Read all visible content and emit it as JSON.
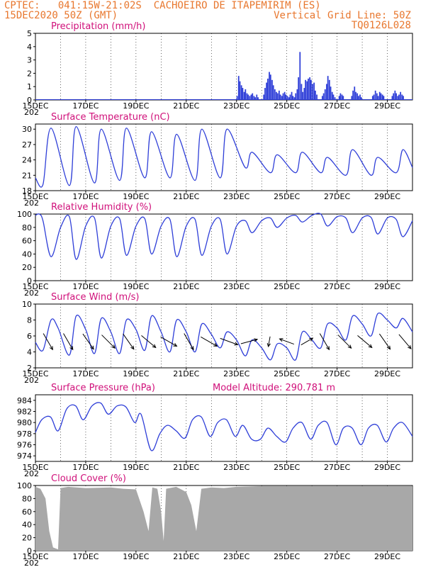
{
  "header": {
    "line1_left": "CPTEC:   041:15W-21:02S  CACHOEIRO DE ITAPEMIRIM (ES)",
    "line2_left": "15DEC2020 50Z (GMT)",
    "line2_right": "Vertical Grid Line: 50Z",
    "line3_right": "TQ0126L028"
  },
  "model_altitude_label": "Model Altitude: 290.781 m",
  "colors": {
    "header": "#e8772e",
    "title": "#d0107a",
    "line": "#2f3fd8",
    "cloud": "#a8a8a8",
    "arrow": "#000000"
  },
  "x_ticks": [
    "15DEC",
    "17DEC",
    "19DEC",
    "21DEC",
    "23DEC",
    "25DEC",
    "27DEC",
    "29DEC"
  ],
  "x_subtick": "202",
  "chart_data": [
    {
      "id": "precip",
      "type": "bar",
      "title": "Precipitation (mm/h)",
      "ylim": [
        0,
        5
      ],
      "yticks": [
        0,
        1,
        2,
        3,
        4,
        5
      ],
      "x_days_range": [
        0,
        15
      ],
      "values": [
        [
          8.0,
          0.3
        ],
        [
          8.06,
          1.8
        ],
        [
          8.11,
          1.4
        ],
        [
          8.17,
          1.1
        ],
        [
          8.22,
          0.9
        ],
        [
          8.28,
          0.6
        ],
        [
          8.33,
          0.8
        ],
        [
          8.39,
          0.5
        ],
        [
          8.44,
          0.4
        ],
        [
          8.5,
          0.3
        ],
        [
          8.56,
          0.4
        ],
        [
          8.61,
          0.5
        ],
        [
          8.67,
          0.3
        ],
        [
          8.72,
          0.2
        ],
        [
          8.78,
          0.4
        ],
        [
          8.83,
          0.2
        ],
        [
          9.06,
          0.4
        ],
        [
          9.11,
          0.9
        ],
        [
          9.17,
          1.3
        ],
        [
          9.22,
          1.6
        ],
        [
          9.28,
          2.1
        ],
        [
          9.33,
          1.9
        ],
        [
          9.39,
          1.5
        ],
        [
          9.44,
          1.1
        ],
        [
          9.5,
          0.8
        ],
        [
          9.56,
          0.6
        ],
        [
          9.61,
          0.5
        ],
        [
          9.67,
          0.7
        ],
        [
          9.72,
          0.4
        ],
        [
          9.78,
          0.3
        ],
        [
          9.83,
          0.5
        ],
        [
          9.89,
          0.6
        ],
        [
          9.94,
          0.4
        ],
        [
          10.0,
          0.3
        ],
        [
          10.06,
          0.2
        ],
        [
          10.11,
          0.4
        ],
        [
          10.17,
          0.6
        ],
        [
          10.22,
          0.3
        ],
        [
          10.28,
          0.2
        ],
        [
          10.33,
          0.5
        ],
        [
          10.39,
          0.8
        ],
        [
          10.44,
          1.7
        ],
        [
          10.5,
          3.6
        ],
        [
          10.56,
          1.2
        ],
        [
          10.61,
          0.6
        ],
        [
          10.67,
          0.9
        ],
        [
          10.72,
          1.5
        ],
        [
          10.78,
          1.4
        ],
        [
          10.83,
          1.6
        ],
        [
          10.89,
          1.7
        ],
        [
          10.94,
          1.5
        ],
        [
          11.0,
          1.2
        ],
        [
          11.06,
          1.3
        ],
        [
          11.11,
          0.7
        ],
        [
          11.17,
          0.4
        ],
        [
          11.39,
          0.3
        ],
        [
          11.44,
          0.5
        ],
        [
          11.5,
          0.8
        ],
        [
          11.56,
          1.2
        ],
        [
          11.61,
          1.8
        ],
        [
          11.67,
          1.5
        ],
        [
          11.72,
          1.0
        ],
        [
          11.78,
          0.6
        ],
        [
          11.83,
          0.4
        ],
        [
          11.89,
          0.2
        ],
        [
          12.06,
          0.3
        ],
        [
          12.11,
          0.5
        ],
        [
          12.17,
          0.4
        ],
        [
          12.22,
          0.3
        ],
        [
          12.56,
          0.3
        ],
        [
          12.61,
          0.7
        ],
        [
          12.67,
          1.0
        ],
        [
          12.72,
          0.6
        ],
        [
          12.78,
          0.5
        ],
        [
          12.83,
          0.3
        ],
        [
          12.89,
          0.4
        ],
        [
          12.94,
          0.2
        ],
        [
          13.39,
          0.3
        ],
        [
          13.44,
          0.4
        ],
        [
          13.5,
          0.7
        ],
        [
          13.56,
          0.5
        ],
        [
          13.61,
          0.3
        ],
        [
          13.67,
          0.6
        ],
        [
          13.72,
          0.5
        ],
        [
          13.78,
          0.4
        ],
        [
          13.83,
          0.3
        ],
        [
          14.17,
          0.3
        ],
        [
          14.22,
          0.5
        ],
        [
          14.28,
          0.7
        ],
        [
          14.33,
          0.5
        ],
        [
          14.39,
          0.3
        ],
        [
          14.44,
          0.4
        ],
        [
          14.5,
          0.6
        ],
        [
          14.56,
          0.4
        ],
        [
          14.61,
          0.3
        ]
      ]
    },
    {
      "id": "temp",
      "type": "line",
      "title": "Surface Temperature (nC)",
      "ylim": [
        18,
        31
      ],
      "yticks": [
        18,
        21,
        24,
        27,
        30
      ],
      "points": [
        [
          0.0,
          20.5
        ],
        [
          0.3,
          19.2
        ],
        [
          0.62,
          30.2
        ],
        [
          1.35,
          19.0
        ],
        [
          1.62,
          30.5
        ],
        [
          2.35,
          19.5
        ],
        [
          2.62,
          30.0
        ],
        [
          3.35,
          20.0
        ],
        [
          3.62,
          30.2
        ],
        [
          4.35,
          20.5
        ],
        [
          4.62,
          29.5
        ],
        [
          5.35,
          20.5
        ],
        [
          5.62,
          29.0
        ],
        [
          6.35,
          20.0
        ],
        [
          6.62,
          30.0
        ],
        [
          7.35,
          20.5
        ],
        [
          7.62,
          30.0
        ],
        [
          8.35,
          22.5
        ],
        [
          8.62,
          25.5
        ],
        [
          9.35,
          21.5
        ],
        [
          9.62,
          25.0
        ],
        [
          10.35,
          21.5
        ],
        [
          10.62,
          25.5
        ],
        [
          11.35,
          21.5
        ],
        [
          11.62,
          24.5
        ],
        [
          12.35,
          21.0
        ],
        [
          12.62,
          26.0
        ],
        [
          13.35,
          21.0
        ],
        [
          13.62,
          24.5
        ],
        [
          14.35,
          21.5
        ],
        [
          14.62,
          26.0
        ],
        [
          15.0,
          22.5
        ]
      ]
    },
    {
      "id": "rh",
      "type": "line",
      "title": "Relative Humidity (%)",
      "ylim": [
        0,
        100
      ],
      "yticks": [
        0,
        20,
        40,
        60,
        80,
        100
      ],
      "points": [
        [
          0.0,
          98
        ],
        [
          0.15,
          100
        ],
        [
          0.3,
          90
        ],
        [
          0.62,
          36
        ],
        [
          1.0,
          80
        ],
        [
          1.35,
          96
        ],
        [
          1.62,
          32
        ],
        [
          2.0,
          82
        ],
        [
          2.35,
          94
        ],
        [
          2.62,
          34
        ],
        [
          3.0,
          82
        ],
        [
          3.35,
          93
        ],
        [
          3.62,
          38
        ],
        [
          4.0,
          82
        ],
        [
          4.35,
          93
        ],
        [
          4.62,
          40
        ],
        [
          5.0,
          82
        ],
        [
          5.35,
          92
        ],
        [
          5.62,
          36
        ],
        [
          6.0,
          82
        ],
        [
          6.35,
          92
        ],
        [
          6.62,
          38
        ],
        [
          7.0,
          82
        ],
        [
          7.35,
          92
        ],
        [
          7.62,
          40
        ],
        [
          8.0,
          82
        ],
        [
          8.35,
          90
        ],
        [
          8.62,
          72
        ],
        [
          9.0,
          90
        ],
        [
          9.35,
          94
        ],
        [
          9.62,
          80
        ],
        [
          10.0,
          94
        ],
        [
          10.35,
          98
        ],
        [
          10.62,
          88
        ],
        [
          11.0,
          98
        ],
        [
          11.35,
          100
        ],
        [
          11.62,
          82
        ],
        [
          12.0,
          96
        ],
        [
          12.35,
          94
        ],
        [
          12.62,
          72
        ],
        [
          13.0,
          94
        ],
        [
          13.35,
          95
        ],
        [
          13.62,
          70
        ],
        [
          14.0,
          94
        ],
        [
          14.35,
          92
        ],
        [
          14.62,
          66
        ],
        [
          15.0,
          90
        ]
      ]
    },
    {
      "id": "wind",
      "type": "line",
      "title": "Surface Wind (m/s)",
      "ylim": [
        2,
        10
      ],
      "yticks": [
        2,
        4,
        6,
        8,
        10
      ],
      "points": [
        [
          0.0,
          5.2
        ],
        [
          0.3,
          4.2
        ],
        [
          0.62,
          8.0
        ],
        [
          0.9,
          7.0
        ],
        [
          1.35,
          3.6
        ],
        [
          1.62,
          8.5
        ],
        [
          2.0,
          6.8
        ],
        [
          2.35,
          3.8
        ],
        [
          2.62,
          8.2
        ],
        [
          3.0,
          6.5
        ],
        [
          3.35,
          3.8
        ],
        [
          3.62,
          8.0
        ],
        [
          4.0,
          6.8
        ],
        [
          4.35,
          4.2
        ],
        [
          4.62,
          8.5
        ],
        [
          5.0,
          6.5
        ],
        [
          5.35,
          4.0
        ],
        [
          5.62,
          8.0
        ],
        [
          6.0,
          6.5
        ],
        [
          6.35,
          4.0
        ],
        [
          6.62,
          7.5
        ],
        [
          7.0,
          6.2
        ],
        [
          7.35,
          4.5
        ],
        [
          7.62,
          6.5
        ],
        [
          8.0,
          5.5
        ],
        [
          8.35,
          3.5
        ],
        [
          8.62,
          5.5
        ],
        [
          9.0,
          4.5
        ],
        [
          9.35,
          3.0
        ],
        [
          9.62,
          5.0
        ],
        [
          10.0,
          4.5
        ],
        [
          10.35,
          3.0
        ],
        [
          10.62,
          6.5
        ],
        [
          11.0,
          5.5
        ],
        [
          11.35,
          4.5
        ],
        [
          11.62,
          7.5
        ],
        [
          12.0,
          7.0
        ],
        [
          12.35,
          5.5
        ],
        [
          12.62,
          8.5
        ],
        [
          13.0,
          7.5
        ],
        [
          13.35,
          6.0
        ],
        [
          13.62,
          8.8
        ],
        [
          14.0,
          8.0
        ],
        [
          14.35,
          7.0
        ],
        [
          14.62,
          8.2
        ],
        [
          15.0,
          6.5
        ]
      ],
      "arrows": [
        [
          0.5,
          -60,
          2.2
        ],
        [
          1.3,
          -60,
          2.2
        ],
        [
          2.1,
          -55,
          2.2
        ],
        [
          2.9,
          -45,
          2.2
        ],
        [
          3.7,
          -55,
          2.2
        ],
        [
          4.5,
          -40,
          2.2
        ],
        [
          5.3,
          -30,
          2.2
        ],
        [
          6.1,
          -60,
          2.2
        ],
        [
          6.9,
          -30,
          2.2
        ],
        [
          7.7,
          -20,
          2.2
        ],
        [
          8.5,
          15,
          2.0
        ],
        [
          9.3,
          -100,
          1.2
        ],
        [
          10.0,
          160,
          1.8
        ],
        [
          10.8,
          30,
          1.6
        ],
        [
          11.5,
          -60,
          2.2
        ],
        [
          12.3,
          -45,
          2.2
        ],
        [
          13.1,
          -40,
          2.2
        ],
        [
          13.9,
          -55,
          2.2
        ],
        [
          14.7,
          -50,
          2.2
        ]
      ]
    },
    {
      "id": "pressure",
      "type": "line",
      "title": "Surface Pressure (hPa)",
      "ylim": [
        973,
        985
      ],
      "yticks": [
        974,
        976,
        978,
        980,
        982,
        984
      ],
      "points": [
        [
          0.0,
          978.2
        ],
        [
          0.25,
          980.5
        ],
        [
          0.6,
          981.0
        ],
        [
          0.9,
          978.5
        ],
        [
          1.25,
          982.5
        ],
        [
          1.6,
          983.0
        ],
        [
          1.9,
          980.5
        ],
        [
          2.25,
          983.0
        ],
        [
          2.6,
          983.5
        ],
        [
          2.9,
          981.5
        ],
        [
          3.25,
          983.0
        ],
        [
          3.6,
          982.8
        ],
        [
          3.95,
          980.0
        ],
        [
          4.2,
          981.5
        ],
        [
          4.6,
          975.0
        ],
        [
          4.95,
          978.0
        ],
        [
          5.25,
          979.5
        ],
        [
          5.6,
          978.5
        ],
        [
          5.95,
          977.2
        ],
        [
          6.25,
          980.5
        ],
        [
          6.6,
          981.0
        ],
        [
          6.95,
          977.5
        ],
        [
          7.25,
          980.0
        ],
        [
          7.6,
          980.5
        ],
        [
          7.95,
          977.5
        ],
        [
          8.25,
          979.5
        ],
        [
          8.6,
          977.0
        ],
        [
          8.95,
          977.0
        ],
        [
          9.25,
          979.0
        ],
        [
          9.6,
          977.5
        ],
        [
          9.95,
          976.5
        ],
        [
          10.25,
          979.0
        ],
        [
          10.6,
          980.0
        ],
        [
          10.95,
          977.0
        ],
        [
          11.25,
          979.5
        ],
        [
          11.6,
          980.0
        ],
        [
          11.95,
          976.0
        ],
        [
          12.25,
          979.0
        ],
        [
          12.6,
          979.0
        ],
        [
          12.95,
          976.0
        ],
        [
          13.25,
          979.0
        ],
        [
          13.6,
          979.5
        ],
        [
          13.95,
          976.5
        ],
        [
          14.25,
          979.0
        ],
        [
          14.6,
          980.0
        ],
        [
          15.0,
          977.5
        ]
      ]
    },
    {
      "id": "cloud",
      "type": "area",
      "title": "Cloud Cover (%)",
      "ylim": [
        0,
        100
      ],
      "yticks": [
        0,
        20,
        40,
        60,
        80,
        100
      ],
      "points": [
        [
          0.0,
          98
        ],
        [
          0.2,
          95
        ],
        [
          0.4,
          80
        ],
        [
          0.55,
          30
        ],
        [
          0.7,
          5
        ],
        [
          0.9,
          2
        ],
        [
          1.0,
          96
        ],
        [
          1.3,
          98
        ],
        [
          2.0,
          96
        ],
        [
          3.0,
          97
        ],
        [
          3.5,
          95
        ],
        [
          4.0,
          94
        ],
        [
          4.3,
          60
        ],
        [
          4.5,
          30
        ],
        [
          4.65,
          97
        ],
        [
          4.85,
          95
        ],
        [
          5.0,
          60
        ],
        [
          5.1,
          15
        ],
        [
          5.2,
          95
        ],
        [
          5.6,
          98
        ],
        [
          6.0,
          90
        ],
        [
          6.2,
          70
        ],
        [
          6.4,
          30
        ],
        [
          6.6,
          95
        ],
        [
          7.0,
          97
        ],
        [
          7.5,
          96
        ],
        [
          8.0,
          98
        ],
        [
          9.0,
          99
        ],
        [
          10.0,
          99
        ],
        [
          11.0,
          99
        ],
        [
          12.0,
          99
        ],
        [
          13.0,
          99
        ],
        [
          14.0,
          99
        ],
        [
          15.0,
          99
        ]
      ]
    }
  ]
}
